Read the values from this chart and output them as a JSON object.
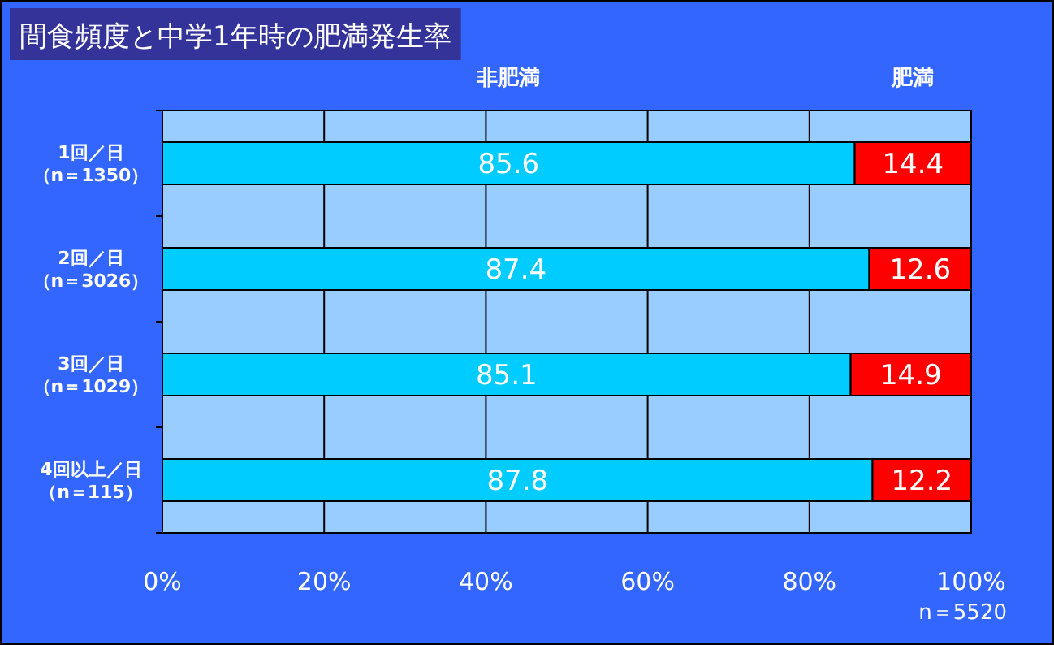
{
  "chart_data": {
    "type": "bar",
    "orientation": "horizontal",
    "stacked": true,
    "title": "間食頻度と中学1年時の肥満発生率",
    "categories": [
      "1回／日（n＝1350）",
      "2回／日（n＝3026）",
      "3回／日（n＝1029）",
      "4回以上／日（n＝115）"
    ],
    "series": [
      {
        "name": "非肥満",
        "color": "#00ccff",
        "values": [
          85.6,
          87.4,
          85.1,
          87.8
        ]
      },
      {
        "name": "肥満",
        "color": "#ff0000",
        "values": [
          14.4,
          12.6,
          14.9,
          12.2
        ]
      }
    ],
    "xlim": [
      0,
      100
    ],
    "xticks": [
      {
        "value": 0,
        "label": "0%"
      },
      {
        "value": 20,
        "label": "20%"
      },
      {
        "value": 40,
        "label": "40%"
      },
      {
        "value": 60,
        "label": "60%"
      },
      {
        "value": 80,
        "label": "80%"
      },
      {
        "value": 100,
        "label": "100%"
      }
    ],
    "grid": "x",
    "data_labels": true,
    "legend": "top",
    "annotations": [
      "n＝5520"
    ]
  }
}
